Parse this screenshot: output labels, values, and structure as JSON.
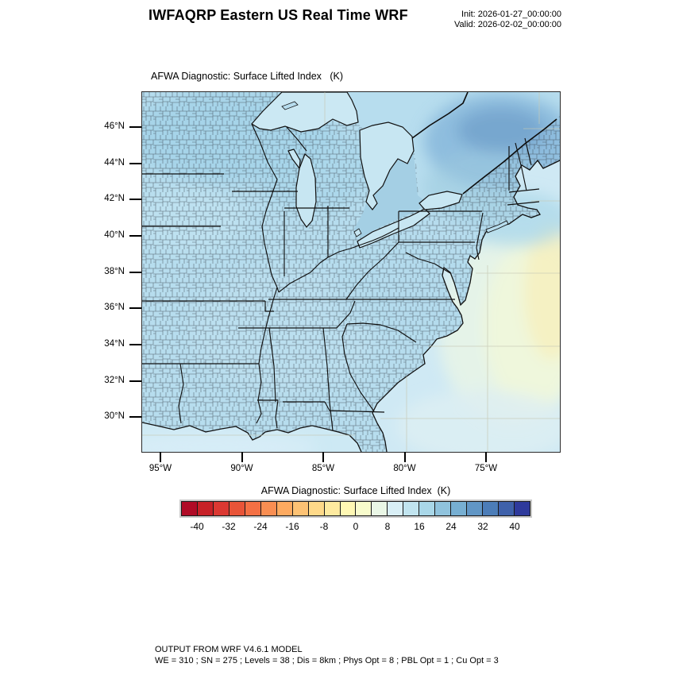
{
  "header": {
    "title": "IWFAQRP Eastern US Real Time WRF",
    "init_label": "Init: 2026-01-27_00:00:00",
    "valid_label": "Valid: 2026-02-02_00:00:00"
  },
  "map": {
    "title": "AFWA Diagnostic: Surface Lifted Index   (K)",
    "lat_ticks": [
      "46°N",
      "44°N",
      "42°N",
      "40°N",
      "38°N",
      "36°N",
      "34°N",
      "32°N",
      "30°N"
    ],
    "lon_ticks": [
      "95°W",
      "90°W",
      "85°W",
      "80°W",
      "75°W"
    ]
  },
  "colorbar": {
    "title": "AFWA Diagnostic: Surface Lifted Index  (K)",
    "tick_labels": [
      "-40",
      "-32",
      "-24",
      "-16",
      "-8",
      "0",
      "8",
      "16",
      "24",
      "32",
      "40"
    ],
    "colors": [
      "#b00b26",
      "#c72127",
      "#db3832",
      "#e85438",
      "#f47044",
      "#f98e52",
      "#fdaa60",
      "#fdc274",
      "#fed989",
      "#feea9f",
      "#fff8b4",
      "#f8fccc",
      "#eaf7e6",
      "#d9eff6",
      "#c1e4ef",
      "#a9d7e8",
      "#90c3dd",
      "#77afd2",
      "#6196c5",
      "#4c7db8",
      "#3f61aa",
      "#2f3a9c"
    ]
  },
  "footer": {
    "line1": "OUTPUT FROM WRF V4.6.1 MODEL",
    "line2": "WE = 310 ; SN = 275 ; Levels = 38 ; Dis = 8km ; Phys Opt = 8 ; PBL Opt = 1 ; Cu Opt = 3"
  },
  "chart_data": {
    "type": "heatmap",
    "title": "AFWA Diagnostic: Surface Lifted Index   (K)",
    "units": "K",
    "projection_region": "Eastern United States and adjacent southeast Canada / western Atlantic",
    "lon_range_deg_w": [
      96.3,
      70.5
    ],
    "lat_range_deg_n": [
      28.0,
      48.1
    ],
    "lon_tick_values_deg_w": [
      95,
      90,
      85,
      80,
      75
    ],
    "lat_tick_values_deg_n": [
      46,
      44,
      42,
      40,
      38,
      36,
      34,
      32,
      30
    ],
    "colorbar_level_boundaries": [
      -44,
      -40,
      -36,
      -32,
      -28,
      -24,
      -20,
      -16,
      -12,
      -8,
      -4,
      0,
      4,
      8,
      12,
      16,
      20,
      24,
      28,
      32,
      36,
      40,
      44
    ],
    "colorbar_tick_values": [
      -40,
      -32,
      -24,
      -16,
      -8,
      0,
      8,
      16,
      24,
      32,
      40
    ],
    "palette_hex": [
      "#b00b26",
      "#c72127",
      "#db3832",
      "#e85438",
      "#f47044",
      "#f98e52",
      "#fdaa60",
      "#fdc274",
      "#fed989",
      "#feea9f",
      "#fff8b4",
      "#f8fccc",
      "#eaf7e6",
      "#d9eff6",
      "#c1e4ef",
      "#a9d7e8",
      "#90c3dd",
      "#77afd2",
      "#6196c5",
      "#4c7db8",
      "#3f61aa",
      "#2f3a9c"
    ],
    "legend_position": "horizontal colorbar below map",
    "grid": "faint graticule lines visible over water",
    "overlays": [
      "US county boundaries",
      "state boundaries",
      "coastlines",
      "US-Canada border",
      "Great Lakes"
    ],
    "field_summary": [
      {
        "region": "most of eastern US land",
        "approx_value_range_K": [
          12,
          20
        ]
      },
      {
        "region": "Minnesota / Wisconsin / upper Michigan patches",
        "approx_value_range_K": [
          16,
          24
        ]
      },
      {
        "region": "St. Lawrence valley / southern Quebec (darkest blue)",
        "approx_value_range_K": [
          24,
          32
        ]
      },
      {
        "region": "Great Lakes surfaces",
        "approx_value_range_K": [
          8,
          16
        ]
      },
      {
        "region": "nearshore Atlantic and Gulf of Mexico",
        "approx_value_range_K": [
          8,
          12
        ]
      },
      {
        "region": "offshore southeast Atlantic (pale band)",
        "approx_value_range_K": [
          0,
          8
        ]
      },
      {
        "region": "far eastern Atlantic patch (pale yellow)",
        "approx_value_range_K": [
          -4,
          4
        ]
      }
    ]
  }
}
